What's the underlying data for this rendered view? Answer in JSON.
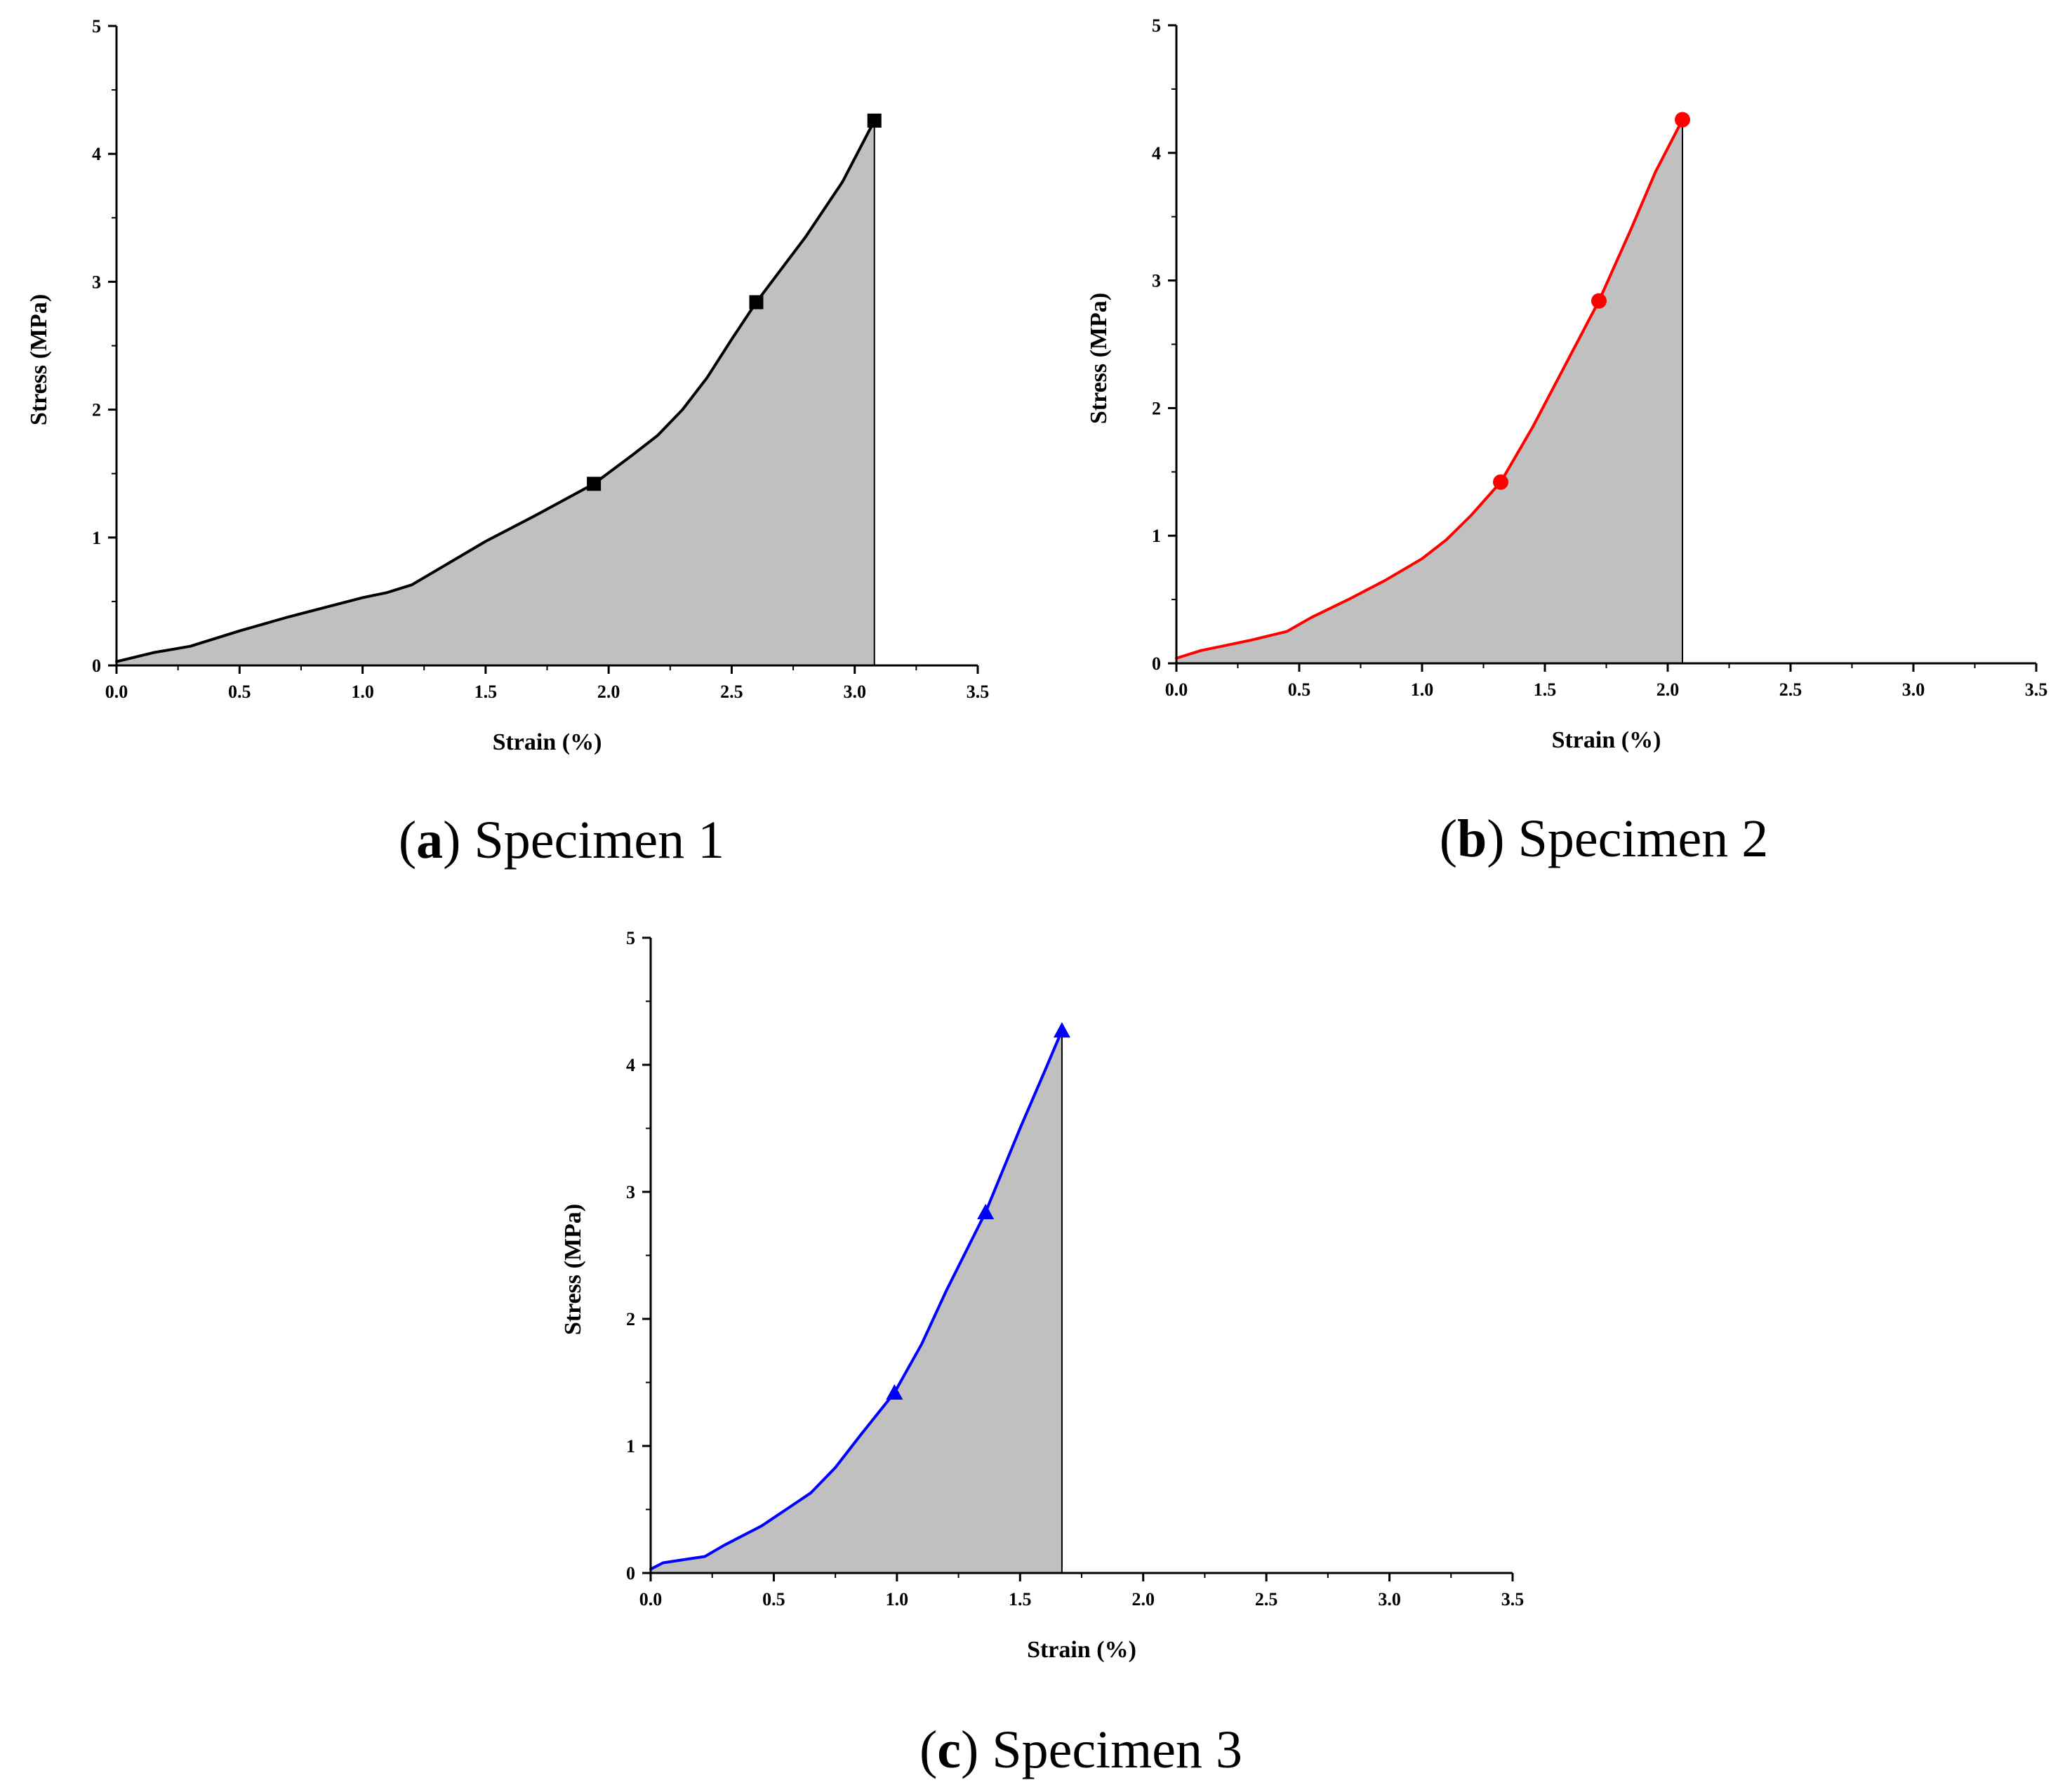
{
  "chart_data": [
    {
      "type": "area",
      "caption": {
        "open": "(",
        "letter": "a",
        "close": ")",
        "text": " Specimen 1"
      },
      "xlabel": "Strain (%)",
      "ylabel": "Stress (MPa)",
      "xlim": [
        0,
        3.5
      ],
      "ylim": [
        0,
        5
      ],
      "xticks": [
        "0.0",
        "0.5",
        "1.0",
        "1.5",
        "2.0",
        "2.5",
        "3.0",
        "3.5"
      ],
      "yticks": [
        "0",
        "1",
        "2",
        "3",
        "4",
        "5"
      ],
      "grid": false,
      "series": [
        {
          "name": "Specimen 1",
          "color": "#000000",
          "fill": "#c0c0c0",
          "marker": "square",
          "x": [
            0.0,
            0.15,
            0.3,
            0.5,
            0.7,
            0.9,
            1.0,
            1.1,
            1.2,
            1.35,
            1.5,
            1.7,
            1.94,
            2.1,
            2.2,
            2.3,
            2.4,
            2.5,
            2.6,
            2.8,
            2.95,
            3.08
          ],
          "y": [
            0.03,
            0.1,
            0.15,
            0.27,
            0.38,
            0.48,
            0.53,
            0.57,
            0.63,
            0.8,
            0.97,
            1.17,
            1.42,
            1.65,
            1.8,
            2.0,
            2.25,
            2.55,
            2.84,
            3.35,
            3.78,
            4.26
          ],
          "markers_x": [
            1.94,
            2.6,
            3.08
          ],
          "markers_y": [
            1.42,
            2.84,
            4.26
          ]
        }
      ]
    },
    {
      "type": "area",
      "caption": {
        "open": "(",
        "letter": "b",
        "close": ")",
        "text": " Specimen 2"
      },
      "xlabel": "Strain (%)",
      "ylabel": "Stress (MPa)",
      "xlim": [
        0,
        3.5
      ],
      "ylim": [
        0,
        5
      ],
      "xticks": [
        "0.0",
        "0.5",
        "1.0",
        "1.5",
        "2.0",
        "2.5",
        "3.0",
        "3.5"
      ],
      "yticks": [
        "0",
        "1",
        "2",
        "3",
        "4",
        "5"
      ],
      "grid": false,
      "series": [
        {
          "name": "Specimen 2",
          "color": "#ff0000",
          "fill": "#c0c0c0",
          "marker": "circle",
          "x": [
            0.0,
            0.1,
            0.2,
            0.3,
            0.45,
            0.55,
            0.7,
            0.85,
            1.0,
            1.1,
            1.2,
            1.32,
            1.45,
            1.6,
            1.72,
            1.85,
            1.95,
            2.06
          ],
          "y": [
            0.04,
            0.1,
            0.14,
            0.18,
            0.25,
            0.36,
            0.5,
            0.65,
            0.82,
            0.97,
            1.16,
            1.42,
            1.85,
            2.4,
            2.84,
            3.4,
            3.85,
            4.26
          ],
          "markers_x": [
            1.32,
            1.72,
            2.06
          ],
          "markers_y": [
            1.42,
            2.84,
            4.26
          ]
        }
      ]
    },
    {
      "type": "area",
      "caption": {
        "open": "(",
        "letter": "c",
        "close": ")",
        "text": " Specimen 3"
      },
      "xlabel": "Strain (%)",
      "ylabel": "Stress (MPa)",
      "xlim": [
        0,
        3.5
      ],
      "ylim": [
        0,
        5
      ],
      "xticks": [
        "0.0",
        "0.5",
        "1.0",
        "1.5",
        "2.0",
        "2.5",
        "3.0",
        "3.5"
      ],
      "yticks": [
        "0",
        "1",
        "2",
        "3",
        "4",
        "5"
      ],
      "grid": false,
      "series": [
        {
          "name": "Specimen 3",
          "color": "#0000ff",
          "fill": "#c0c0c0",
          "marker": "triangle",
          "x": [
            0.0,
            0.05,
            0.15,
            0.22,
            0.3,
            0.45,
            0.55,
            0.65,
            0.75,
            0.85,
            0.99,
            1.1,
            1.2,
            1.36,
            1.5,
            1.6,
            1.67
          ],
          "y": [
            0.03,
            0.08,
            0.11,
            0.13,
            0.22,
            0.37,
            0.5,
            0.63,
            0.83,
            1.08,
            1.42,
            1.8,
            2.22,
            2.84,
            3.5,
            3.95,
            4.27
          ],
          "markers_x": [
            0.99,
            1.36,
            1.67
          ],
          "markers_y": [
            1.42,
            2.84,
            4.27
          ]
        }
      ]
    }
  ]
}
